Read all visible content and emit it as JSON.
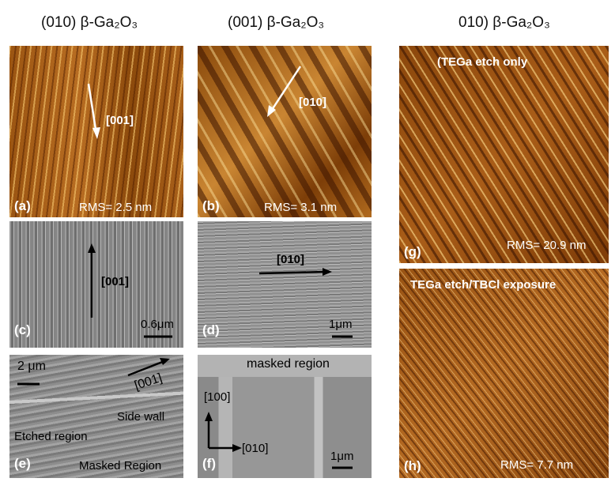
{
  "headings": [
    "(010) β-Ga₂O₃",
    "(001) β-Ga₂O₃",
    "010) β-Ga₂O₃"
  ],
  "panels": {
    "a": {
      "label": "(a)",
      "direction": "[001]",
      "rms": "RMS= 2.5 nm"
    },
    "b": {
      "label": "(b)",
      "direction": "[010]",
      "rms": "RMS= 3.1 nm"
    },
    "c": {
      "label": "(c)",
      "direction": "[001]",
      "scale": "0.6μm"
    },
    "d": {
      "label": "(d)",
      "direction": "[010]",
      "scale": "1μm"
    },
    "e": {
      "label": "(e)",
      "scale": "2 μm",
      "direction": "[001]",
      "regions": [
        "Side wall",
        "Etched region",
        "Masked Region"
      ]
    },
    "f": {
      "label": "(f)",
      "region": "masked region",
      "axis_vertical": "[100]",
      "axis_horizontal": "[010]",
      "scale": "1μm"
    },
    "g": {
      "label": "(g)",
      "caption": "(TEGa etch only",
      "rms": "RMS= 20.9 nm"
    },
    "h": {
      "label": "(h)",
      "caption": "TEGa etch/TBCl exposure",
      "rms": "RMS= 7.7 nm"
    }
  }
}
